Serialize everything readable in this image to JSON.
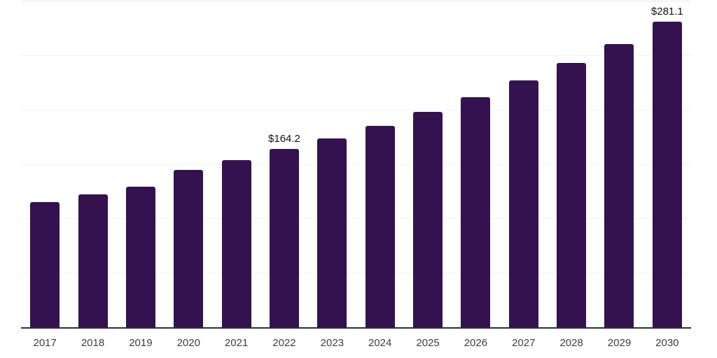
{
  "chart_data": {
    "type": "bar",
    "title": "",
    "xlabel": "",
    "ylabel": "",
    "categories": [
      "2017",
      "2018",
      "2019",
      "2020",
      "2021",
      "2022",
      "2023",
      "2024",
      "2025",
      "2026",
      "2027",
      "2028",
      "2029",
      "2030"
    ],
    "values": [
      115.9,
      122.6,
      130.0,
      145.4,
      154.3,
      164.2,
      173.9,
      185.7,
      198.5,
      212.0,
      227.3,
      243.2,
      260.8,
      281.1
    ],
    "data_labels": [
      {
        "category": "2022",
        "text": "$164.2"
      },
      {
        "category": "2030",
        "text": "$281.1"
      }
    ],
    "ylim": [
      0,
      300
    ],
    "grid_step": 50,
    "gridlines": "horizontal",
    "y_tick_labels_visible": false,
    "legend_position": "none",
    "colors": {
      "bar": "#341250",
      "axis_line": "#2e2e2e",
      "gridline": "#f1f1f3",
      "plot_top_line": "#e9e9ec",
      "data_label": "#111111",
      "tick_label": "#3d3d3d",
      "background": "#ffffff"
    }
  }
}
